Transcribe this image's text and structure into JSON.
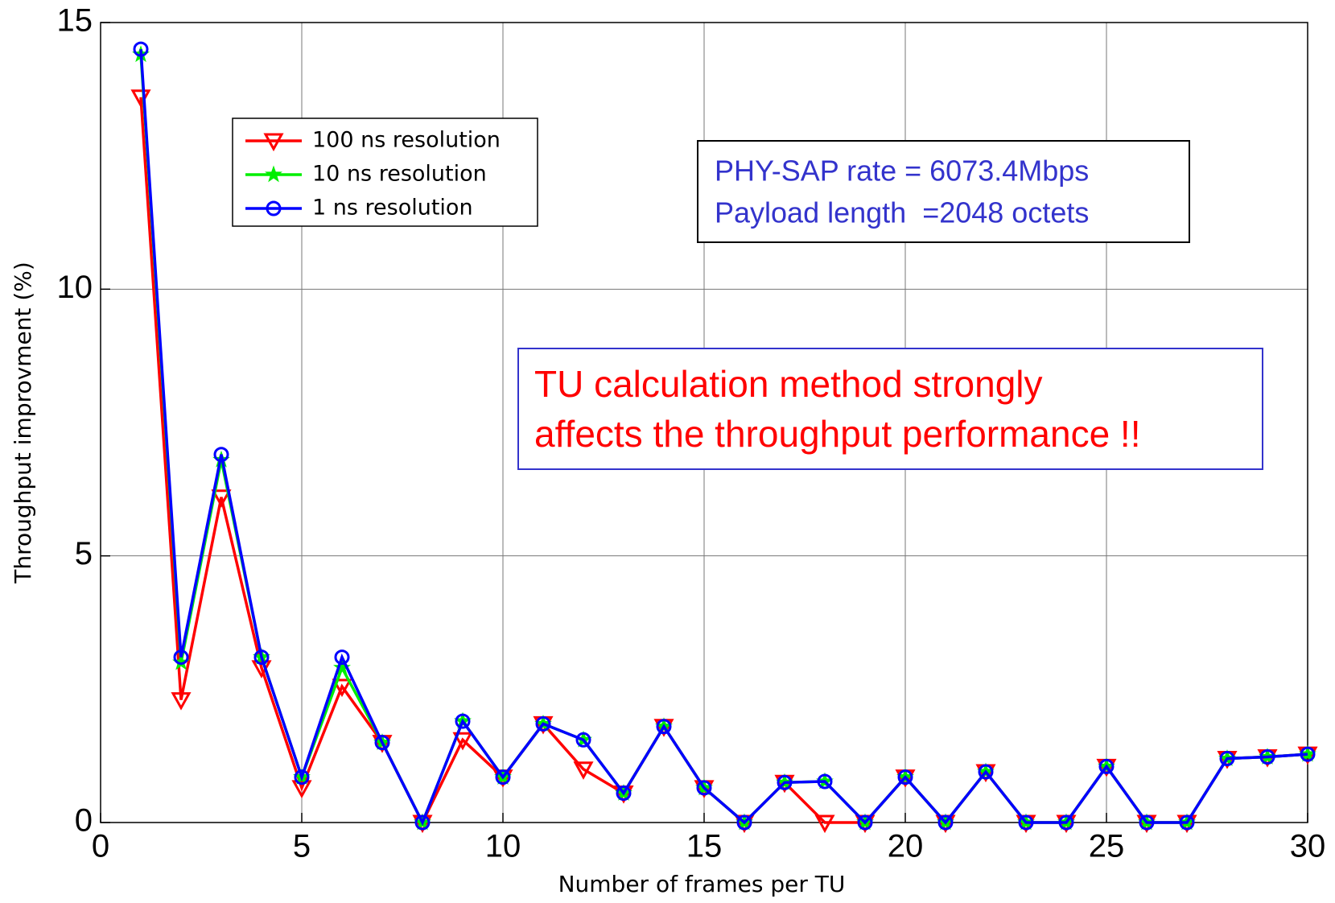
{
  "chart_data": {
    "type": "line",
    "xlabel": "Number of frames per TU",
    "ylabel": "Throughput improvment (%)",
    "x": [
      1,
      2,
      3,
      4,
      5,
      6,
      7,
      8,
      9,
      10,
      11,
      12,
      13,
      14,
      15,
      16,
      17,
      18,
      19,
      20,
      21,
      22,
      23,
      24,
      25,
      26,
      27,
      28,
      29,
      30
    ],
    "series": [
      {
        "name": "100 ns resolution",
        "color": "#ff0000",
        "marker": "triangle-down",
        "values": [
          13.6,
          2.3,
          6.1,
          2.9,
          0.65,
          2.55,
          1.5,
          0,
          1.55,
          0.85,
          1.85,
          1.0,
          0.55,
          1.8,
          0.65,
          0,
          0.75,
          0,
          0,
          0.85,
          0,
          0.95,
          0,
          0,
          1.05,
          0,
          0,
          1.2,
          1.23,
          1.28
        ]
      },
      {
        "name": "10 ns resolution",
        "color": "#00ee00",
        "marker": "star",
        "values": [
          14.4,
          3.0,
          6.8,
          3.1,
          0.85,
          2.9,
          1.5,
          0,
          1.9,
          0.85,
          1.85,
          1.55,
          0.55,
          1.8,
          0.65,
          0,
          0.75,
          0.77,
          0,
          0.85,
          0,
          0.95,
          0,
          0,
          1.05,
          0,
          0,
          1.2,
          1.23,
          1.28
        ]
      },
      {
        "name": "1 ns resolution",
        "color": "#0000ff",
        "marker": "circle",
        "values": [
          14.5,
          3.1,
          6.9,
          3.1,
          0.85,
          3.1,
          1.5,
          0,
          1.9,
          0.85,
          1.85,
          1.55,
          0.55,
          1.8,
          0.65,
          0,
          0.75,
          0.77,
          0,
          0.85,
          0,
          0.95,
          0,
          0,
          1.05,
          0,
          0,
          1.2,
          1.23,
          1.28
        ]
      }
    ],
    "xlim": [
      0,
      30
    ],
    "xticks": [
      0,
      5,
      10,
      15,
      20,
      25,
      30
    ],
    "ylim": [
      0,
      15
    ],
    "yticks": [
      0,
      5,
      10,
      15
    ],
    "grid": true,
    "annotations": [
      {
        "lines": [
          "PHY-SAP rate = 6073.4Mbps",
          "Payload length  =2048 octets"
        ],
        "color": "#3333cc"
      },
      {
        "lines": [
          "TU calculation method strongly",
          "affects the throughput performance !!"
        ],
        "color": "#ff0000"
      }
    ]
  }
}
